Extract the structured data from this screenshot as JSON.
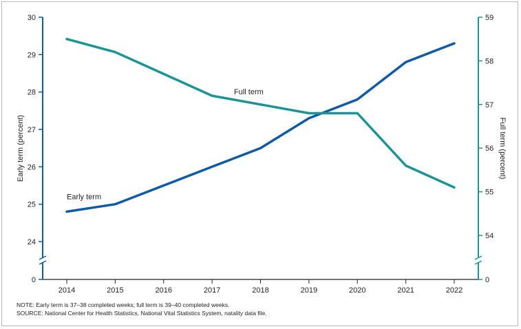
{
  "chart_data": {
    "type": "line",
    "x": [
      2014,
      2015,
      2016,
      2017,
      2018,
      2019,
      2020,
      2021,
      2022
    ],
    "x_tick_labels": [
      "2014",
      "2015",
      "2016",
      "2017",
      "2018",
      "2019",
      "2020",
      "2021",
      "2022"
    ],
    "y_left": {
      "label": "Early term (percent)",
      "ylim": [
        24,
        30
      ],
      "ticks": [
        "24",
        "25",
        "26",
        "27",
        "28",
        "29",
        "30"
      ],
      "break_label": "0"
    },
    "y_right": {
      "label": "Full term (percent)",
      "ylim": [
        54,
        59
      ],
      "ticks": [
        "54",
        "55",
        "56",
        "57",
        "58",
        "59"
      ],
      "break_label": "0"
    },
    "series": [
      {
        "name": "Early term",
        "axis": "left",
        "color": "#0d5aa7",
        "values": [
          24.8,
          25.0,
          25.5,
          26.0,
          26.5,
          27.3,
          27.8,
          28.8,
          29.3
        ]
      },
      {
        "name": "Full term",
        "axis": "right",
        "color": "#1a9494",
        "values": [
          58.5,
          58.2,
          57.7,
          57.2,
          57.0,
          56.8,
          56.8,
          55.6,
          55.1
        ]
      }
    ],
    "grid": false
  },
  "notes": {
    "note": "NOTE: Early term is 37–38 completed weeks; full term is 39–40 completed weeks.",
    "source": "SOURCE: National Center for Health Statistics, National Vital Statistics System, natality data file."
  }
}
